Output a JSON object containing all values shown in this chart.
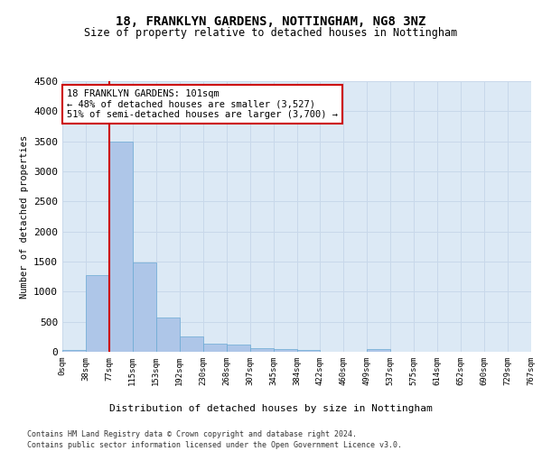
{
  "title": "18, FRANKLYN GARDENS, NOTTINGHAM, NG8 3NZ",
  "subtitle": "Size of property relative to detached houses in Nottingham",
  "xlabel": "Distribution of detached houses by size in Nottingham",
  "ylabel": "Number of detached properties",
  "bar_color": "#aec6e8",
  "bar_edge_color": "#6aaad4",
  "grid_color": "#c8d8ea",
  "vline_color": "#cc0000",
  "vline_x": 2.0,
  "annotation_text": "18 FRANKLYN GARDENS: 101sqm\n← 48% of detached houses are smaller (3,527)\n51% of semi-detached houses are larger (3,700) →",
  "annotation_box_color": "#ffffff",
  "annotation_box_edge": "#cc0000",
  "bins": [
    "0sqm",
    "38sqm",
    "77sqm",
    "115sqm",
    "153sqm",
    "192sqm",
    "230sqm",
    "268sqm",
    "307sqm",
    "345sqm",
    "384sqm",
    "422sqm",
    "460sqm",
    "499sqm",
    "537sqm",
    "575sqm",
    "614sqm",
    "652sqm",
    "690sqm",
    "729sqm",
    "767sqm"
  ],
  "values": [
    25,
    1270,
    3500,
    1480,
    575,
    255,
    130,
    120,
    65,
    40,
    30,
    0,
    0,
    40,
    0,
    0,
    0,
    0,
    0,
    0
  ],
  "ylim": [
    0,
    4500
  ],
  "yticks": [
    0,
    500,
    1000,
    1500,
    2000,
    2500,
    3000,
    3500,
    4000,
    4500
  ],
  "footer_line1": "Contains HM Land Registry data © Crown copyright and database right 2024.",
  "footer_line2": "Contains public sector information licensed under the Open Government Licence v3.0.",
  "bg_color": "#dce9f5",
  "fig_bg_color": "#ffffff"
}
